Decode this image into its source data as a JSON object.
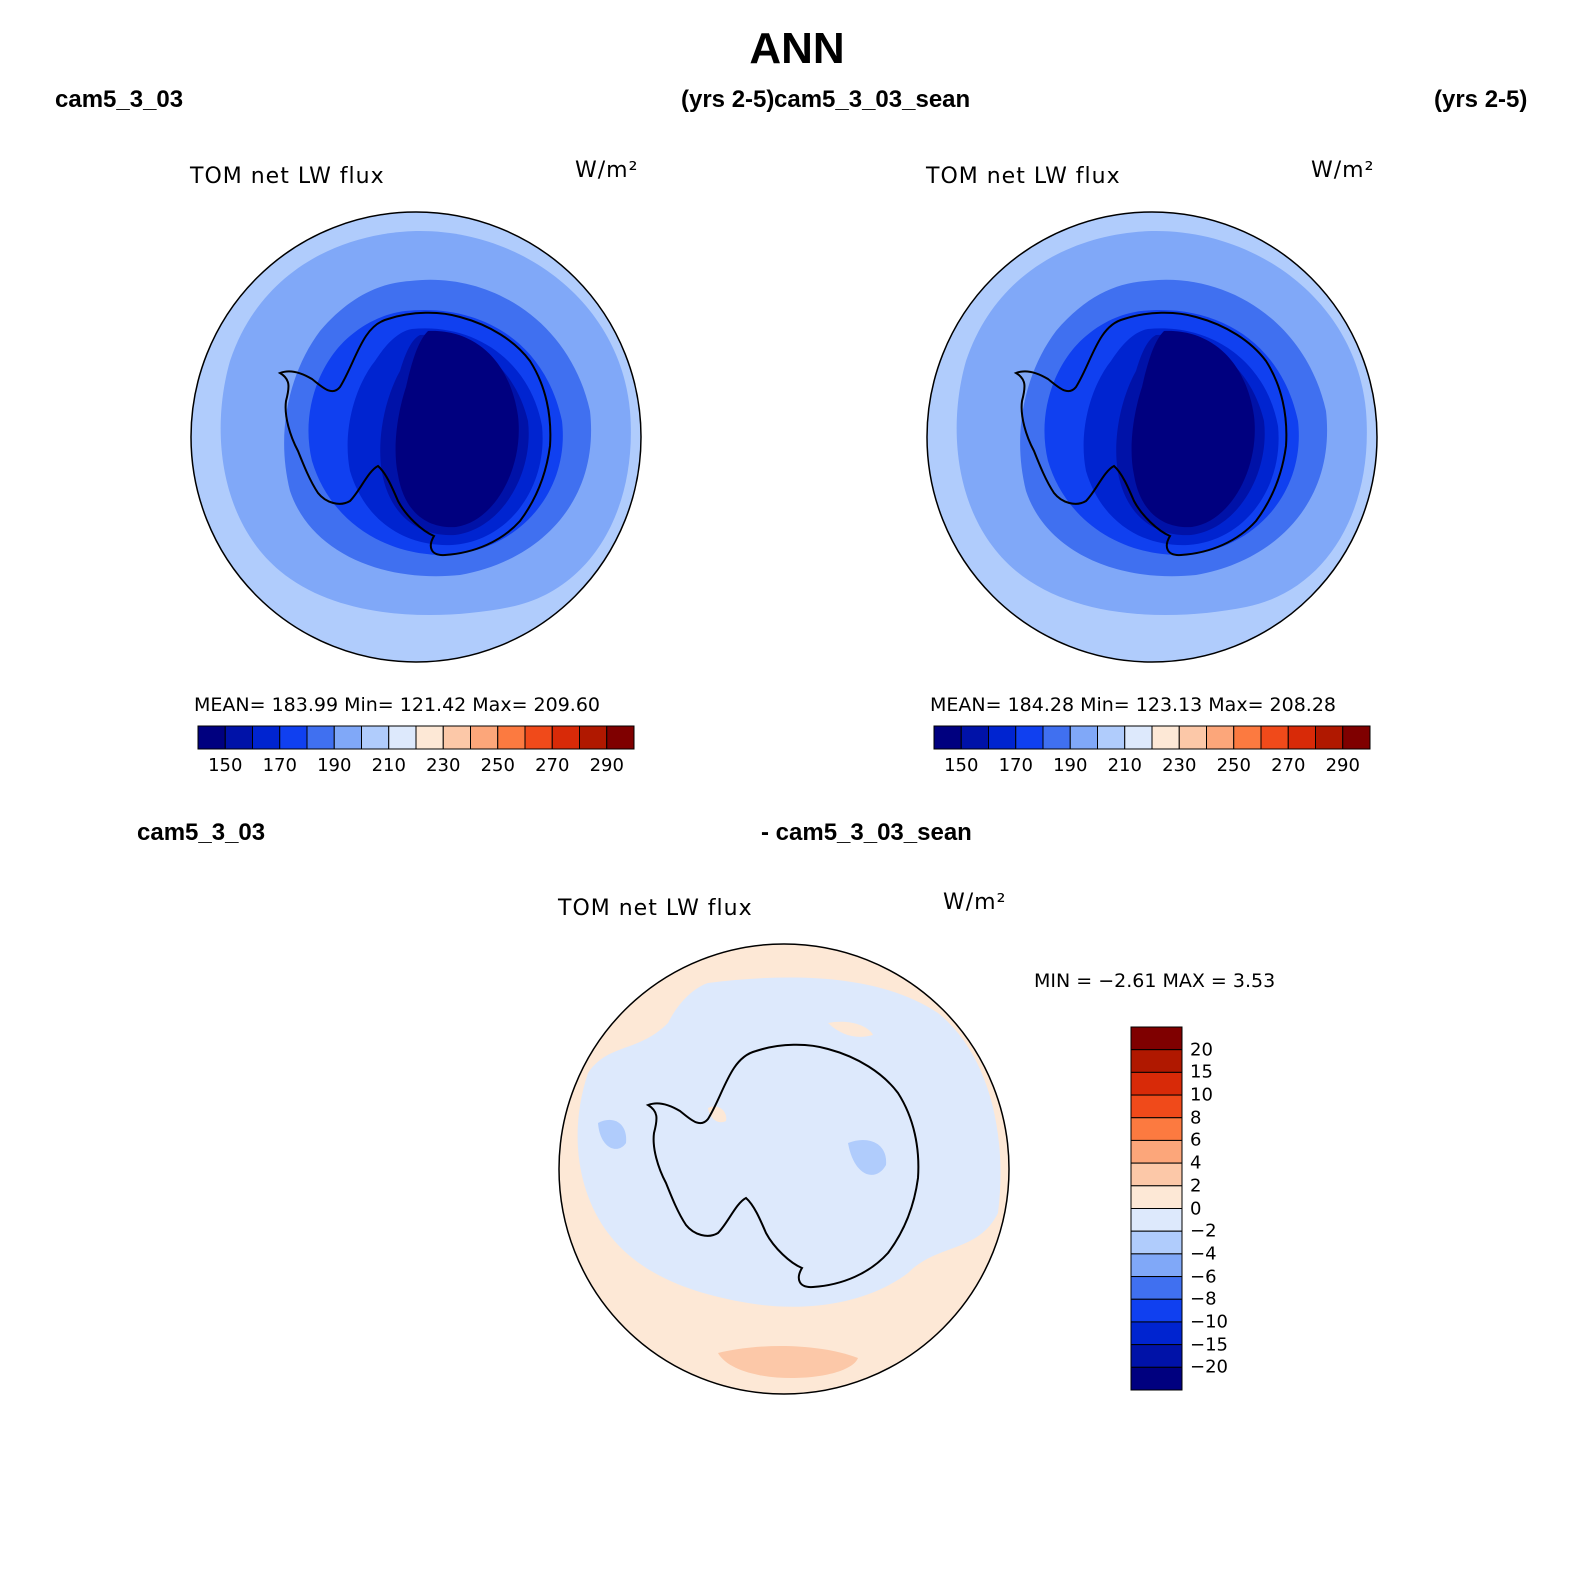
{
  "title": "ANN",
  "panels": [
    {
      "case_left": "cam5_3_03",
      "years": "(yrs 2-5)",
      "plot_title": "TOM net LW flux",
      "units": "W/m²",
      "stats": {
        "mean": "183.99",
        "min": "121.42",
        "max": "209.60"
      },
      "stats_text": "MEAN=  183.99    Min=  121.42    Max=  209.60"
    },
    {
      "case_left": "cam5_3_03_sean",
      "years": "(yrs 2-5)",
      "plot_title": "TOM net LW flux",
      "units": "W/m²",
      "stats": {
        "mean": "184.28",
        "min": "123.13",
        "max": "208.28"
      },
      "stats_text": "MEAN=  184.28    Min=  123.13    Max=  208.28"
    }
  ],
  "diff_panel": {
    "case_a": "cam5_3_03",
    "case_b": "- cam5_3_03_sean",
    "plot_title": "TOM net LW flux",
    "units": "W/m²",
    "stats": {
      "min": "−2.61",
      "max": "3.53"
    },
    "stats_text": "MIN =    −2.61  MAX =     3.53"
  },
  "colorbar_abs": {
    "colors": [
      "#00007f",
      "#0012a8",
      "#0024d0",
      "#1040f0",
      "#4070f0",
      "#80a8f8",
      "#b0ccfc",
      "#dde9fc",
      "#fde8d6",
      "#fcc8a8",
      "#fca67a",
      "#fc7a40",
      "#f04a1a",
      "#d82a08",
      "#b01800",
      "#7f0000"
    ],
    "labels": [
      "150",
      "170",
      "190",
      "210",
      "230",
      "250",
      "270",
      "290"
    ]
  },
  "colorbar_diff": {
    "colors_top_to_bottom": [
      "#7f0000",
      "#b01800",
      "#d82a08",
      "#f04a1a",
      "#fc7a40",
      "#fca67a",
      "#fcc8a8",
      "#fde8d6",
      "#dde9fc",
      "#b0ccfc",
      "#80a8f8",
      "#4070f0",
      "#1040f0",
      "#0024d0",
      "#0012a8",
      "#00007f"
    ],
    "labels_top_to_bottom": [
      "20",
      "15",
      "10",
      "8",
      "6",
      "4",
      "2",
      "0",
      "−2",
      "−4",
      "−6",
      "−8",
      "−10",
      "−15",
      "−20"
    ]
  },
  "chart_data": {
    "type": "heatmap",
    "title": "ANN",
    "variable": "TOM net LW flux",
    "units": "W/m²",
    "projection": "south polar stereographic",
    "panels": [
      {
        "case": "cam5_3_03",
        "years": "2-5",
        "mean": 183.99,
        "min": 121.42,
        "max": 209.6,
        "levels": [
          150,
          160,
          170,
          180,
          190,
          200,
          210,
          220,
          230,
          240,
          250,
          260,
          270,
          280,
          290
        ]
      },
      {
        "case": "cam5_3_03_sean",
        "years": "2-5",
        "mean": 184.28,
        "min": 123.13,
        "max": 208.28,
        "levels": [
          150,
          160,
          170,
          180,
          190,
          200,
          210,
          220,
          230,
          240,
          250,
          260,
          270,
          280,
          290
        ]
      },
      {
        "case": "cam5_3_03 - cam5_3_03_sean",
        "min": -2.61,
        "max": 3.53,
        "levels": [
          -20,
          -15,
          -10,
          -8,
          -6,
          -4,
          -2,
          0,
          2,
          4,
          6,
          8,
          10,
          15,
          20
        ]
      }
    ]
  }
}
